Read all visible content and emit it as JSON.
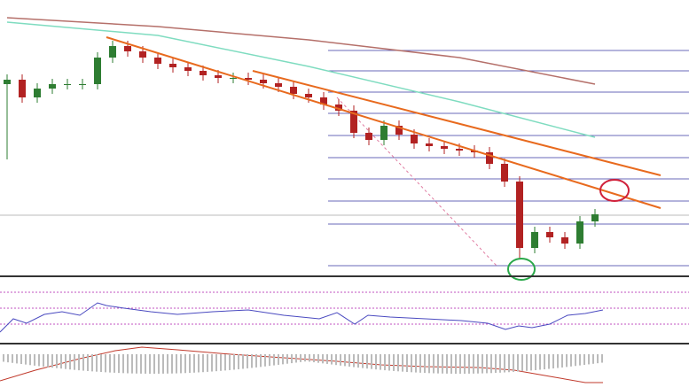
{
  "chart_data": {
    "type": "candlestick",
    "ylim": [
      0,
      310
    ],
    "up_color": "#2e7d32",
    "down_color": "#b22222",
    "open": [
      215,
      220,
      200,
      210,
      215,
      215,
      215,
      245,
      258,
      252,
      245,
      238,
      234,
      230,
      225,
      222,
      222,
      220,
      216,
      212,
      204,
      200,
      192,
      185,
      160,
      152,
      168,
      158,
      148,
      145,
      142,
      140,
      138,
      125,
      105,
      30,
      48,
      42,
      35,
      60
    ],
    "high": [
      226,
      226,
      216,
      221,
      221,
      221,
      251,
      264,
      264,
      258,
      251,
      244,
      240,
      236,
      231,
      228,
      228,
      226,
      222,
      218,
      210,
      206,
      198,
      191,
      166,
      174,
      174,
      164,
      154,
      151,
      148,
      146,
      144,
      131,
      111,
      54,
      54,
      48,
      66,
      74
    ],
    "low": [
      130,
      194,
      194,
      204,
      209,
      209,
      209,
      239,
      246,
      239,
      232,
      228,
      224,
      219,
      216,
      216,
      214,
      210,
      206,
      198,
      194,
      186,
      179,
      154,
      146,
      146,
      152,
      142,
      139,
      136,
      134,
      132,
      119,
      99,
      18,
      24,
      36,
      29,
      29,
      54
    ],
    "close": [
      220,
      200,
      210,
      215,
      215,
      215,
      245,
      258,
      252,
      245,
      238,
      234,
      230,
      225,
      222,
      222,
      220,
      216,
      212,
      204,
      200,
      192,
      185,
      160,
      152,
      168,
      158,
      148,
      145,
      142,
      140,
      138,
      125,
      105,
      30,
      48,
      42,
      35,
      60,
      68
    ],
    "lines": [
      {
        "color": "#7fdcc0",
        "x": [
          0,
          10,
          20,
          30,
          39
        ],
        "values": [
          285,
          270,
          235,
          195,
          155
        ]
      },
      {
        "color": "#b5706a",
        "x": [
          0,
          10,
          20,
          30,
          39
        ],
        "values": [
          290,
          280,
          265,
          245,
          215
        ]
      }
    ]
  }
}
